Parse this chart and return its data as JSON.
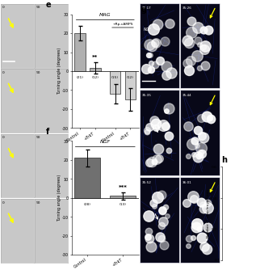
{
  "panel_e": {
    "title": "MAG",
    "subtitle": "+Rp-cAMPS",
    "categories": [
      "Control",
      "+TrkT",
      "Control",
      "+TrkT"
    ],
    "values": [
      20.0,
      1.5,
      -12.0,
      -15.0
    ],
    "errors": [
      4.0,
      3.0,
      5.0,
      6.0
    ],
    "ns": [
      "(21)",
      "(12)",
      "(15)",
      "(12)"
    ],
    "bar_colors": [
      "#b0b0b0",
      "#b0b0b0",
      "#d0d0d0",
      "#d0d0d0"
    ],
    "significance": [
      "",
      "**",
      "",
      ""
    ],
    "ylim": [
      -30,
      30
    ],
    "yticks": [
      -30,
      -20,
      -10,
      0,
      10,
      20,
      30
    ],
    "ylabel": "Turning angle (degrees)"
  },
  "panel_f": {
    "title": "NGF",
    "categories": [
      "Control",
      "+TrkT"
    ],
    "values": [
      21.0,
      1.0
    ],
    "errors": [
      4.5,
      2.0
    ],
    "ns": [
      "(28)",
      "(13)"
    ],
    "bar_colors": [
      "#707070",
      "#a0a0a0"
    ],
    "significance": [
      "",
      "***"
    ],
    "ylim": [
      -30,
      30
    ],
    "yticks": [
      -30,
      -20,
      -10,
      0,
      10,
      20,
      30
    ],
    "ylabel": "Turning angle (degrees)"
  },
  "timestamps_left": [
    "35:17",
    "35:35",
    "35:52"
  ],
  "timestamps_right": [
    "35:26",
    "35:44",
    "36:01"
  ],
  "bg_color": "#ffffff"
}
